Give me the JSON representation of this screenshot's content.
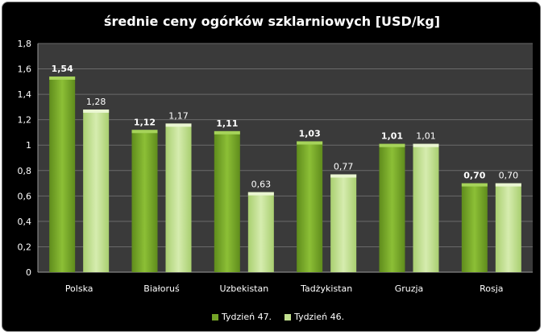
{
  "chart_data": {
    "type": "bar",
    "title": "średnie ceny ogórków szklarniowych [USD/kg]",
    "categories": [
      "Polska",
      "Białoruś",
      "Uzbekistan",
      "Tadżykistan",
      "Gruzja",
      "Rosja"
    ],
    "series": [
      {
        "name": "Tydzień 47.",
        "values": [
          1.54,
          1.12,
          1.11,
          1.03,
          1.01,
          0.7
        ],
        "labels": [
          "1,54",
          "1,12",
          "1,11",
          "1,03",
          "1,01",
          "0,70"
        ],
        "color": "#74a327"
      },
      {
        "name": "Tydzień 46.",
        "values": [
          1.28,
          1.17,
          0.63,
          0.77,
          1.01,
          0.7
        ],
        "labels": [
          "1,28",
          "1,17",
          "0,63",
          "0,77",
          "1,01",
          "0,70"
        ],
        "color": "#c2e08f"
      }
    ],
    "ylim": [
      0,
      1.8
    ],
    "yticks": [
      0,
      0.2,
      0.4,
      0.6,
      0.8,
      1,
      1.2,
      1.4,
      1.6,
      1.8
    ],
    "ytick_labels": [
      "0",
      "0,2",
      "0,4",
      "0,6",
      "0,8",
      "1",
      "1,2",
      "1,4",
      "1,6",
      "1,8"
    ],
    "grid": true,
    "legend_position": "bottom",
    "background": "#000000",
    "plot_background": "#3a3a3a"
  }
}
